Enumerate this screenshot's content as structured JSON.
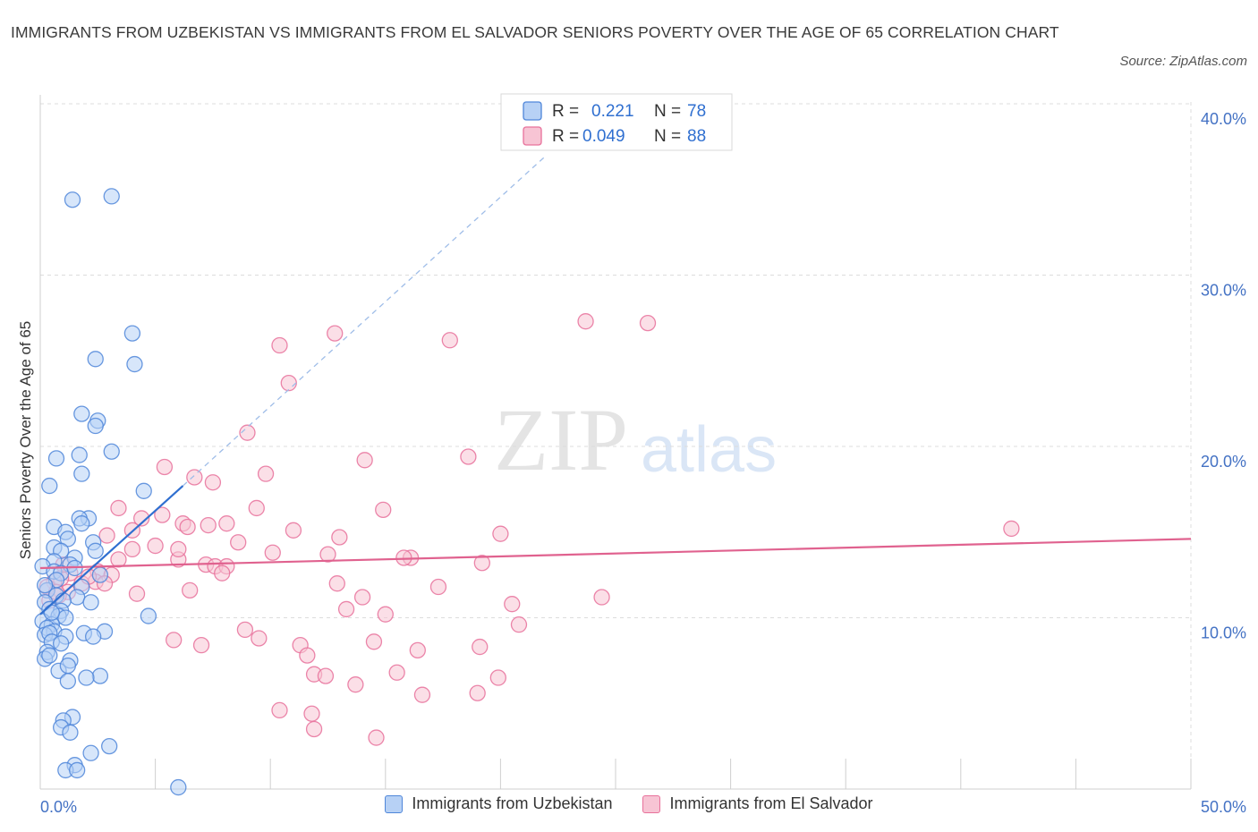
{
  "title": "IMMIGRANTS FROM UZBEKISTAN VS IMMIGRANTS FROM EL SALVADOR SENIORS POVERTY OVER THE AGE OF 65 CORRELATION CHART",
  "source": "Source: ZipAtlas.com",
  "watermark": {
    "zip": "ZIP",
    "atlas": "atlas"
  },
  "colors": {
    "blue": "#4f86d9",
    "blue_fill": "#b7d1f5",
    "blue_line": "#2f6fd0",
    "pink": "#e8719b",
    "pink_fill": "#f7c4d4",
    "pink_line": "#e0628f",
    "axis_label": "#4472c4",
    "grid": "#dcdcdc"
  },
  "legend": {
    "rows": [
      {
        "r_label": "R =",
        "r_value": "0.221",
        "n_label": "N =",
        "n_value": "78"
      },
      {
        "r_label": "R =",
        "r_value": "0.049",
        "n_label": "N =",
        "n_value": "88"
      }
    ]
  },
  "chart_data": {
    "type": "scatter",
    "title": "IMMIGRANTS FROM UZBEKISTAN VS IMMIGRANTS FROM EL SALVADOR SENIORS POVERTY OVER THE AGE OF 65 CORRELATION CHART",
    "xlabel": "",
    "ylabel": "Seniors Poverty Over the Age of 65",
    "xlim": [
      0,
      50
    ],
    "ylim": [
      0,
      40
    ],
    "x_tick_labels": [
      "0.0%",
      "50.0%"
    ],
    "y_ticks": [
      10,
      20,
      30,
      40
    ],
    "y_tick_labels": [
      "10.0%",
      "20.0%",
      "30.0%",
      "40.0%"
    ],
    "grid": true,
    "series": [
      {
        "name": "Immigrants from Uzbekistan",
        "R": 0.221,
        "N": 78,
        "trend": {
          "x": [
            0,
            6.2
          ],
          "y": [
            10.2,
            17.7
          ]
        },
        "trend_dashed": {
          "x": [
            6.2,
            22
          ],
          "y": [
            17.7,
            37
          ]
        },
        "points": [
          [
            1.4,
            34.4
          ],
          [
            3.1,
            34.6
          ],
          [
            4.0,
            26.6
          ],
          [
            2.4,
            25.1
          ],
          [
            4.1,
            24.8
          ],
          [
            1.8,
            21.9
          ],
          [
            2.5,
            21.5
          ],
          [
            2.4,
            21.2
          ],
          [
            3.1,
            19.7
          ],
          [
            1.7,
            19.5
          ],
          [
            0.7,
            19.3
          ],
          [
            1.8,
            18.4
          ],
          [
            0.4,
            17.7
          ],
          [
            4.5,
            17.4
          ],
          [
            2.1,
            15.8
          ],
          [
            1.7,
            15.8
          ],
          [
            0.6,
            15.3
          ],
          [
            1.8,
            15.5
          ],
          [
            1.1,
            15.0
          ],
          [
            1.2,
            14.6
          ],
          [
            2.3,
            14.4
          ],
          [
            0.6,
            14.1
          ],
          [
            0.9,
            13.9
          ],
          [
            2.4,
            13.9
          ],
          [
            1.5,
            13.5
          ],
          [
            0.6,
            13.3
          ],
          [
            1.3,
            13.1
          ],
          [
            0.1,
            13.0
          ],
          [
            0.6,
            12.7
          ],
          [
            0.9,
            12.6
          ],
          [
            2.6,
            12.5
          ],
          [
            0.7,
            12.2
          ],
          [
            1.8,
            11.8
          ],
          [
            0.3,
            11.6
          ],
          [
            0.7,
            11.3
          ],
          [
            1.6,
            11.2
          ],
          [
            1.0,
            11.0
          ],
          [
            0.2,
            10.9
          ],
          [
            2.2,
            10.9
          ],
          [
            0.4,
            10.5
          ],
          [
            0.9,
            10.4
          ],
          [
            0.8,
            10.1
          ],
          [
            1.1,
            10.0
          ],
          [
            4.7,
            10.1
          ],
          [
            0.1,
            9.8
          ],
          [
            0.5,
            9.6
          ],
          [
            0.3,
            9.4
          ],
          [
            0.6,
            9.2
          ],
          [
            1.9,
            9.1
          ],
          [
            2.8,
            9.2
          ],
          [
            0.2,
            9.0
          ],
          [
            0.4,
            9.1
          ],
          [
            1.1,
            8.9
          ],
          [
            2.3,
            8.9
          ],
          [
            0.5,
            8.6
          ],
          [
            0.9,
            8.5
          ],
          [
            0.3,
            8.0
          ],
          [
            0.2,
            7.6
          ],
          [
            0.4,
            7.8
          ],
          [
            1.3,
            7.5
          ],
          [
            0.8,
            6.9
          ],
          [
            1.2,
            7.2
          ],
          [
            2.6,
            6.6
          ],
          [
            1.2,
            6.3
          ],
          [
            2.0,
            6.5
          ],
          [
            1.4,
            4.2
          ],
          [
            1.0,
            4.0
          ],
          [
            0.9,
            3.6
          ],
          [
            1.3,
            3.3
          ],
          [
            3.0,
            2.5
          ],
          [
            2.2,
            2.1
          ],
          [
            1.5,
            1.4
          ],
          [
            1.1,
            1.1
          ],
          [
            1.6,
            1.1
          ],
          [
            6.0,
            0.1
          ],
          [
            0.2,
            11.9
          ],
          [
            0.5,
            10.3
          ],
          [
            1.5,
            12.9
          ]
        ]
      },
      {
        "name": "Immigrants from El Salvador",
        "R": 0.049,
        "N": 88,
        "trend": {
          "x": [
            0,
            50
          ],
          "y": [
            12.9,
            14.6
          ]
        },
        "points": [
          [
            23.7,
            27.3
          ],
          [
            26.4,
            27.2
          ],
          [
            12.8,
            26.6
          ],
          [
            17.8,
            26.2
          ],
          [
            10.4,
            25.9
          ],
          [
            10.8,
            23.7
          ],
          [
            9.0,
            20.8
          ],
          [
            14.1,
            19.2
          ],
          [
            18.6,
            19.4
          ],
          [
            5.4,
            18.8
          ],
          [
            9.8,
            18.4
          ],
          [
            6.7,
            18.2
          ],
          [
            7.5,
            17.9
          ],
          [
            14.9,
            16.3
          ],
          [
            9.4,
            16.4
          ],
          [
            3.4,
            16.4
          ],
          [
            5.3,
            16.0
          ],
          [
            4.4,
            15.8
          ],
          [
            6.2,
            15.5
          ],
          [
            8.1,
            15.5
          ],
          [
            7.3,
            15.4
          ],
          [
            6.4,
            15.3
          ],
          [
            11.0,
            15.1
          ],
          [
            4.0,
            15.1
          ],
          [
            2.9,
            14.8
          ],
          [
            20.0,
            14.9
          ],
          [
            13.0,
            14.7
          ],
          [
            42.2,
            15.2
          ],
          [
            8.6,
            14.4
          ],
          [
            5.0,
            14.2
          ],
          [
            4.0,
            14.0
          ],
          [
            10.1,
            13.8
          ],
          [
            12.5,
            13.7
          ],
          [
            16.1,
            13.5
          ],
          [
            15.8,
            13.5
          ],
          [
            3.4,
            13.4
          ],
          [
            6.0,
            13.4
          ],
          [
            19.2,
            13.2
          ],
          [
            7.2,
            13.1
          ],
          [
            7.6,
            13.0
          ],
          [
            8.1,
            13.0
          ],
          [
            2.5,
            12.7
          ],
          [
            1.3,
            12.6
          ],
          [
            7.9,
            12.6
          ],
          [
            0.9,
            12.3
          ],
          [
            3.1,
            12.5
          ],
          [
            0.6,
            12.1
          ],
          [
            2.4,
            12.1
          ],
          [
            2.8,
            12.0
          ],
          [
            1.8,
            12.0
          ],
          [
            12.9,
            12.0
          ],
          [
            17.3,
            11.8
          ],
          [
            6.5,
            11.6
          ],
          [
            4.2,
            11.4
          ],
          [
            1.2,
            11.5
          ],
          [
            0.8,
            11.3
          ],
          [
            14.0,
            11.2
          ],
          [
            24.4,
            11.2
          ],
          [
            0.4,
            11.0
          ],
          [
            20.5,
            10.8
          ],
          [
            13.3,
            10.5
          ],
          [
            15.0,
            10.2
          ],
          [
            20.8,
            9.6
          ],
          [
            8.9,
            9.3
          ],
          [
            9.5,
            8.8
          ],
          [
            5.8,
            8.7
          ],
          [
            14.5,
            8.6
          ],
          [
            7.0,
            8.4
          ],
          [
            11.3,
            8.4
          ],
          [
            19.1,
            8.3
          ],
          [
            16.4,
            8.1
          ],
          [
            11.6,
            7.8
          ],
          [
            11.9,
            6.7
          ],
          [
            15.5,
            6.8
          ],
          [
            12.4,
            6.6
          ],
          [
            19.9,
            6.5
          ],
          [
            13.7,
            6.1
          ],
          [
            16.6,
            5.5
          ],
          [
            19.0,
            5.6
          ],
          [
            10.4,
            4.6
          ],
          [
            11.8,
            4.4
          ],
          [
            11.9,
            3.5
          ],
          [
            14.6,
            3.0
          ],
          [
            0.3,
            11.8
          ],
          [
            1.0,
            13.1
          ],
          [
            2.1,
            12.4
          ],
          [
            0.7,
            11.5
          ],
          [
            6.0,
            14.0
          ]
        ]
      }
    ]
  },
  "bottom_legend": [
    {
      "label": "Immigrants from Uzbekistan"
    },
    {
      "label": "Immigrants from El Salvador"
    }
  ]
}
